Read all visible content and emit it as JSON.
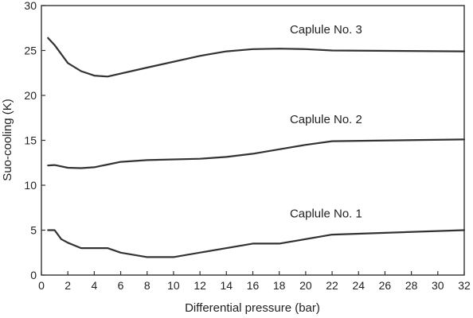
{
  "chart_data": {
    "type": "line",
    "xlabel": "Differential pressure (bar)",
    "ylabel": "Suo-cooling (K)",
    "xlim": [
      0,
      32
    ],
    "ylim": [
      0,
      30
    ],
    "xticks": [
      0,
      2,
      4,
      6,
      8,
      10,
      12,
      14,
      16,
      18,
      20,
      22,
      24,
      26,
      28,
      30,
      32
    ],
    "yticks": [
      0,
      5,
      10,
      15,
      20,
      25,
      30
    ],
    "grid": false,
    "legend": "none",
    "series": [
      {
        "name": "Caplule No. 3",
        "x": [
          0.5,
          1.0,
          2.0,
          3.0,
          4.0,
          5.0,
          8.0,
          12.0,
          14.0,
          16.0,
          18.0,
          20.0,
          22.0,
          32.0
        ],
        "y": [
          26.4,
          25.6,
          23.6,
          22.7,
          22.2,
          22.1,
          23.1,
          24.4,
          24.9,
          25.15,
          25.2,
          25.15,
          25.0,
          24.9
        ]
      },
      {
        "name": "Caplule No. 2",
        "x": [
          0.5,
          1.0,
          2.0,
          3.0,
          4.0,
          5.0,
          6.0,
          8.0,
          12.0,
          14.0,
          16.0,
          18.0,
          20.0,
          22.0,
          32.0
        ],
        "y": [
          12.2,
          12.25,
          11.95,
          11.9,
          12.0,
          12.3,
          12.6,
          12.8,
          12.95,
          13.15,
          13.5,
          14.0,
          14.5,
          14.9,
          15.1
        ]
      },
      {
        "name": "Caplule No. 1",
        "x": [
          0.5,
          1.0,
          1.5,
          2.0,
          3.0,
          4.0,
          5.0,
          6.0,
          8.0,
          10.0,
          16.0,
          18.0,
          22.0,
          32.0
        ],
        "y": [
          5.0,
          5.0,
          4.0,
          3.6,
          3.0,
          3.0,
          3.0,
          2.5,
          2.0,
          2.0,
          3.5,
          3.5,
          4.5,
          5.0
        ]
      }
    ],
    "annotations": [
      {
        "text": "Caplule No. 3",
        "x": 18.8,
        "y": 26.9
      },
      {
        "text": "Caplule No. 2",
        "x": 18.8,
        "y": 16.9
      },
      {
        "text": "Caplule No. 1",
        "x": 18.8,
        "y": 6.4
      }
    ],
    "colors": {
      "line": "#333333",
      "text": "#222222"
    }
  }
}
